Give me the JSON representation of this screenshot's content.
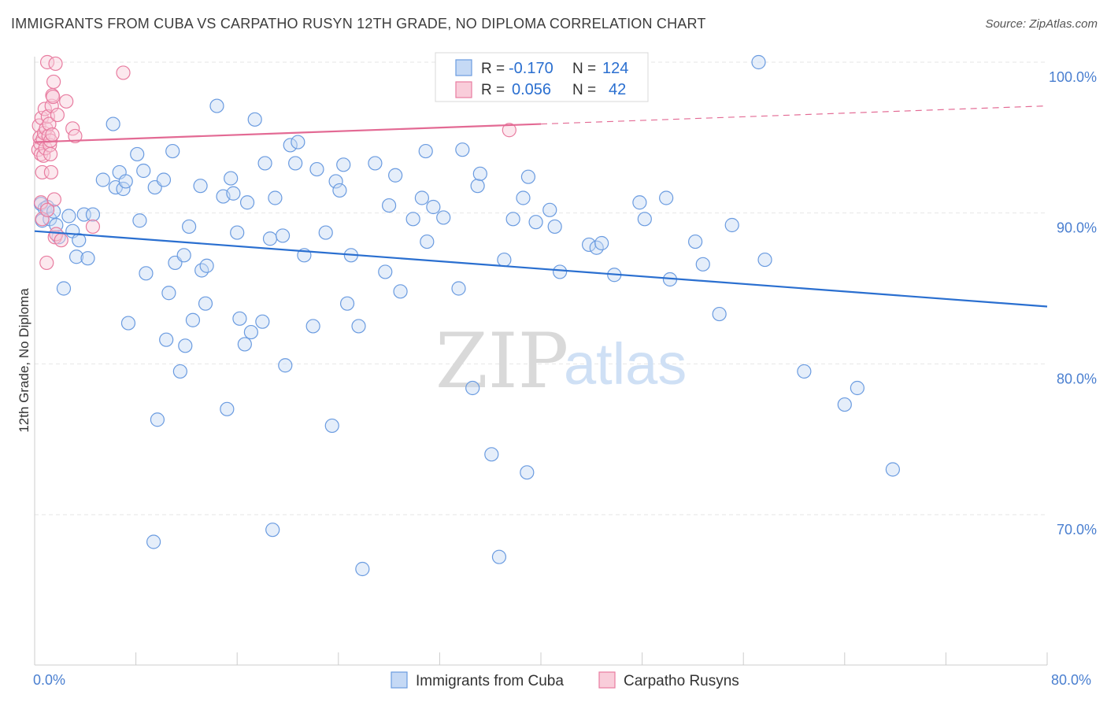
{
  "title": "IMMIGRANTS FROM CUBA VS CARPATHO RUSYN 12TH GRADE, NO DIPLOMA CORRELATION CHART",
  "source": "Source: ZipAtlas.com",
  "watermark": {
    "zip": "ZIP",
    "atlas": "atlas"
  },
  "colors": {
    "blue": "#6a9be0",
    "blue_line": "#2a6fd0",
    "pink": "#e87ca0",
    "pink_line": "#e36a94",
    "tick_text": "#4a7fd0",
    "grid": "#e6e6e6"
  },
  "legend_box": {
    "rows": [
      {
        "r_label": "R =",
        "r_value": "-0.170",
        "n_label": "N =",
        "n_value": "124",
        "color": "#6a9be0"
      },
      {
        "r_label": "R =",
        "r_value": "0.056",
        "n_label": "N =",
        "n_value": "42",
        "color": "#e87ca0"
      }
    ]
  },
  "chart_data": {
    "type": "scatter",
    "title": "IMMIGRANTS FROM CUBA VS CARPATHO RUSYN 12TH GRADE, NO DIPLOMA CORRELATION CHART",
    "xlabel": "",
    "ylabel": "12th Grade, No Diploma",
    "xlim": [
      0,
      80
    ],
    "ylim": [
      60,
      101.5
    ],
    "x_tick_labels": {
      "0": "0.0%",
      "80": "80.0%"
    },
    "y_tick_labels": {
      "70": "70.0%",
      "80": "80.0%",
      "90": "90.0%",
      "100": "100.0%"
    },
    "grid": true,
    "legend_position": "bottom-center",
    "series": [
      {
        "name": "Immigrants from Cuba",
        "color": "#6a9be0",
        "r": -0.17,
        "n": 124,
        "trend": {
          "x": [
            0,
            80
          ],
          "y": [
            88.8,
            83.8
          ],
          "dashed_from": null
        },
        "points": [
          [
            0.5,
            90.6
          ],
          [
            0.6,
            89.5
          ],
          [
            0.8,
            90.3
          ],
          [
            1.0,
            90.4
          ],
          [
            1.2,
            89.6
          ],
          [
            1.5,
            90.1
          ],
          [
            1.7,
            89.2
          ],
          [
            1.9,
            88.4
          ],
          [
            2.3,
            85.0
          ],
          [
            2.7,
            89.8
          ],
          [
            3.0,
            88.8
          ],
          [
            3.3,
            87.1
          ],
          [
            3.5,
            88.2
          ],
          [
            3.9,
            89.9
          ],
          [
            4.2,
            87.0
          ],
          [
            4.6,
            89.9
          ],
          [
            5.4,
            92.2
          ],
          [
            6.2,
            95.9
          ],
          [
            6.4,
            91.7
          ],
          [
            6.7,
            92.7
          ],
          [
            7.0,
            91.6
          ],
          [
            7.2,
            92.1
          ],
          [
            7.4,
            82.7
          ],
          [
            8.1,
            93.9
          ],
          [
            8.3,
            89.5
          ],
          [
            8.6,
            92.8
          ],
          [
            8.8,
            86.0
          ],
          [
            9.4,
            68.2
          ],
          [
            9.5,
            91.7
          ],
          [
            9.7,
            76.3
          ],
          [
            10.2,
            92.2
          ],
          [
            10.4,
            81.6
          ],
          [
            10.6,
            84.7
          ],
          [
            10.9,
            94.1
          ],
          [
            11.1,
            86.7
          ],
          [
            11.5,
            79.5
          ],
          [
            11.8,
            87.2
          ],
          [
            11.9,
            81.2
          ],
          [
            12.2,
            89.1
          ],
          [
            12.5,
            82.9
          ],
          [
            13.1,
            91.8
          ],
          [
            13.2,
            86.2
          ],
          [
            13.5,
            84.0
          ],
          [
            13.6,
            86.5
          ],
          [
            14.4,
            97.1
          ],
          [
            14.9,
            91.1
          ],
          [
            15.2,
            77.0
          ],
          [
            15.5,
            92.3
          ],
          [
            15.7,
            91.3
          ],
          [
            16.0,
            88.7
          ],
          [
            16.2,
            83.0
          ],
          [
            16.6,
            81.3
          ],
          [
            16.8,
            90.7
          ],
          [
            17.1,
            82.1
          ],
          [
            17.4,
            96.2
          ],
          [
            18.0,
            82.8
          ],
          [
            18.8,
            69.0
          ],
          [
            18.2,
            93.3
          ],
          [
            18.6,
            88.3
          ],
          [
            19.0,
            91.0
          ],
          [
            19.6,
            88.5
          ],
          [
            19.8,
            79.9
          ],
          [
            20.2,
            94.5
          ],
          [
            20.6,
            93.3
          ],
          [
            20.8,
            94.7
          ],
          [
            21.3,
            87.2
          ],
          [
            22.0,
            82.5
          ],
          [
            22.3,
            92.9
          ],
          [
            23.0,
            88.7
          ],
          [
            23.5,
            75.9
          ],
          [
            23.8,
            92.1
          ],
          [
            24.1,
            91.5
          ],
          [
            24.4,
            93.2
          ],
          [
            24.7,
            84.0
          ],
          [
            25.0,
            87.2
          ],
          [
            25.6,
            82.5
          ],
          [
            25.9,
            66.4
          ],
          [
            26.9,
            93.3
          ],
          [
            27.7,
            86.1
          ],
          [
            28.0,
            90.5
          ],
          [
            28.5,
            92.5
          ],
          [
            28.9,
            84.8
          ],
          [
            29.9,
            89.6
          ],
          [
            30.6,
            91.0
          ],
          [
            30.9,
            94.1
          ],
          [
            31.0,
            88.1
          ],
          [
            31.5,
            90.4
          ],
          [
            32.3,
            89.7
          ],
          [
            33.5,
            85.0
          ],
          [
            33.8,
            94.2
          ],
          [
            34.6,
            78.4
          ],
          [
            35.0,
            91.8
          ],
          [
            35.2,
            92.6
          ],
          [
            36.1,
            74.0
          ],
          [
            36.7,
            67.2
          ],
          [
            37.1,
            86.9
          ],
          [
            37.8,
            89.6
          ],
          [
            38.6,
            91.0
          ],
          [
            38.9,
            72.8
          ],
          [
            39.0,
            92.4
          ],
          [
            39.6,
            89.4
          ],
          [
            40.7,
            90.2
          ],
          [
            41.1,
            89.1
          ],
          [
            41.5,
            86.1
          ],
          [
            43.8,
            87.9
          ],
          [
            44.4,
            87.7
          ],
          [
            44.8,
            88.0
          ],
          [
            45.8,
            85.9
          ],
          [
            47.8,
            90.7
          ],
          [
            48.2,
            89.6
          ],
          [
            49.9,
            91.0
          ],
          [
            50.2,
            85.6
          ],
          [
            52.2,
            88.1
          ],
          [
            52.8,
            86.6
          ],
          [
            54.1,
            83.3
          ],
          [
            55.1,
            89.2
          ],
          [
            57.2,
            100.0
          ],
          [
            57.7,
            86.9
          ],
          [
            60.8,
            79.5
          ],
          [
            64.0,
            77.3
          ],
          [
            65.0,
            78.4
          ],
          [
            67.8,
            73.0
          ]
        ]
      },
      {
        "name": "Carpatho Rusyns",
        "color": "#e87ca0",
        "r": 0.056,
        "n": 42,
        "trend": {
          "x": [
            0,
            80
          ],
          "y": [
            94.7,
            97.1
          ],
          "dashed_from": 40
        },
        "points": [
          [
            0.3,
            94.2
          ],
          [
            0.35,
            95.8
          ],
          [
            0.4,
            95.0
          ],
          [
            0.45,
            94.6
          ],
          [
            0.5,
            93.9
          ],
          [
            0.55,
            96.3
          ],
          [
            0.6,
            92.7
          ],
          [
            0.65,
            94.9
          ],
          [
            0.7,
            93.8
          ],
          [
            0.75,
            95.3
          ],
          [
            0.8,
            96.9
          ],
          [
            0.85,
            94.3
          ],
          [
            0.9,
            95.6
          ],
          [
            0.95,
            86.7
          ],
          [
            1.0,
            100.0
          ],
          [
            1.05,
            96.4
          ],
          [
            1.1,
            95.1
          ],
          [
            1.15,
            95.9
          ],
          [
            1.2,
            94.5
          ],
          [
            1.25,
            93.9
          ],
          [
            1.3,
            92.7
          ],
          [
            1.35,
            97.1
          ],
          [
            1.4,
            97.8
          ],
          [
            1.45,
            97.7
          ],
          [
            1.5,
            98.7
          ],
          [
            1.55,
            90.9
          ],
          [
            1.6,
            88.4
          ],
          [
            1.65,
            99.9
          ],
          [
            1.7,
            88.6
          ],
          [
            1.8,
            96.5
          ],
          [
            2.1,
            88.2
          ],
          [
            2.5,
            97.4
          ],
          [
            3.0,
            95.6
          ],
          [
            3.2,
            95.1
          ],
          [
            4.6,
            89.1
          ],
          [
            7.0,
            99.3
          ],
          [
            0.5,
            90.7
          ],
          [
            0.6,
            89.6
          ],
          [
            1.0,
            90.2
          ],
          [
            1.25,
            94.8
          ],
          [
            37.5,
            95.5
          ],
          [
            1.4,
            95.2
          ]
        ]
      }
    ]
  }
}
